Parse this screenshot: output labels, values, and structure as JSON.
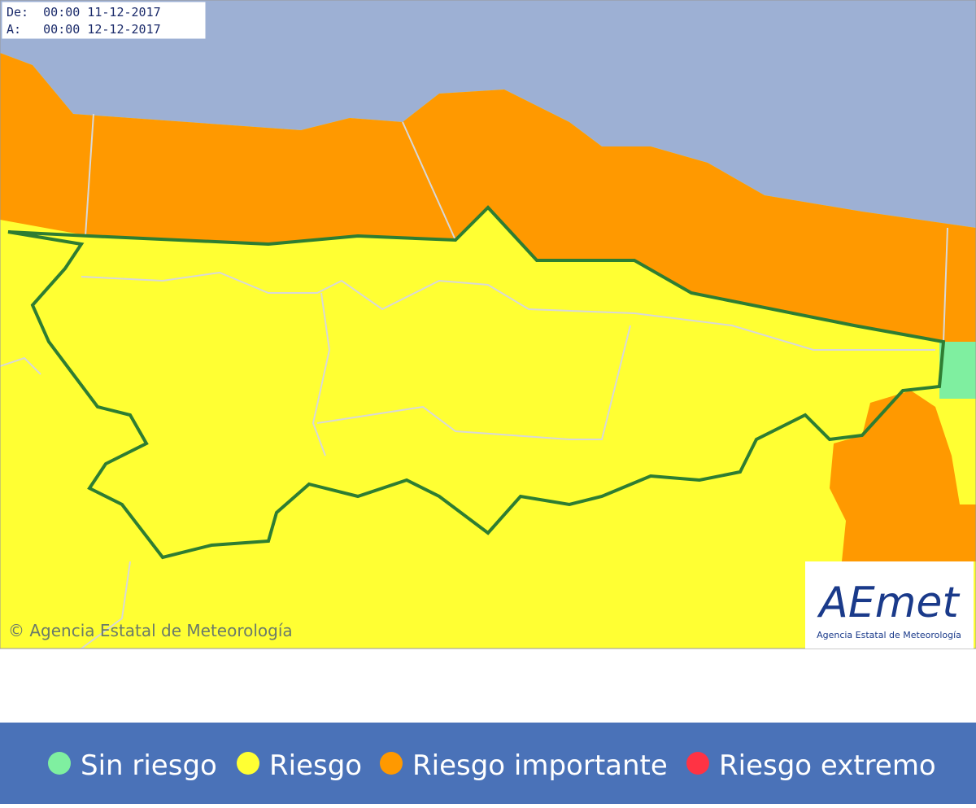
{
  "validity": {
    "from": "De:  00:00 11-12-2017",
    "to": "A:   00:00 12-12-2017"
  },
  "copyright": "© Agencia Estatal de Meteorología",
  "logo": {
    "name": "AEmet",
    "subtitle": "Agencia Estatal de Meteorología"
  },
  "legend": {
    "items": [
      {
        "label": "Sin riesgo",
        "color": "#7fefa0"
      },
      {
        "label": "Riesgo",
        "color": "#ffff33"
      },
      {
        "label": "Riesgo importante",
        "color": "#ff9900"
      },
      {
        "label": "Riesgo extremo",
        "color": "#ff3344"
      }
    ]
  }
}
